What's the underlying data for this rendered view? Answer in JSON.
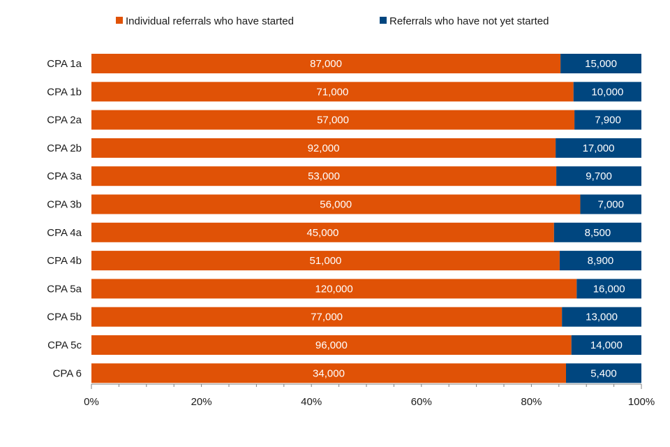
{
  "chart_data": {
    "type": "bar",
    "orientation": "horizontal",
    "stacking": "percent",
    "categories": [
      "CPA 1a",
      "CPA 1b",
      "CPA 2a",
      "CPA 2b",
      "CPA 3a",
      "CPA 3b",
      "CPA 4a",
      "CPA 4b",
      "CPA 5a",
      "CPA 5b",
      "CPA 5c",
      "CPA 6"
    ],
    "series": [
      {
        "name": "Individual referrals who have started",
        "color": "#E05206",
        "values": [
          87000,
          71000,
          57000,
          92000,
          53000,
          56000,
          45000,
          51000,
          120000,
          77000,
          96000,
          34000
        ],
        "labels": [
          "87,000",
          "71,000",
          "57,000",
          "92,000",
          "53,000",
          "56,000",
          "45,000",
          "51,000",
          "120,000",
          "77,000",
          "96,000",
          "34,000"
        ]
      },
      {
        "name": "Referrals who have not yet started",
        "color": "#00467F",
        "values": [
          15000,
          10000,
          7900,
          17000,
          9700,
          7000,
          8500,
          8900,
          16000,
          13000,
          14000,
          5400
        ],
        "labels": [
          "15,000",
          "10,000",
          "7,900",
          "17,000",
          "9,700",
          "7,000",
          "8,500",
          "8,900",
          "16,000",
          "13,000",
          "14,000",
          "5,400"
        ]
      }
    ],
    "xlim": [
      0,
      100
    ],
    "x_ticks": [
      0,
      20,
      40,
      60,
      80,
      100
    ],
    "x_tick_labels": [
      "0%",
      "20%",
      "40%",
      "60%",
      "80%",
      "100%"
    ],
    "legend_position": "top",
    "grid": false
  }
}
